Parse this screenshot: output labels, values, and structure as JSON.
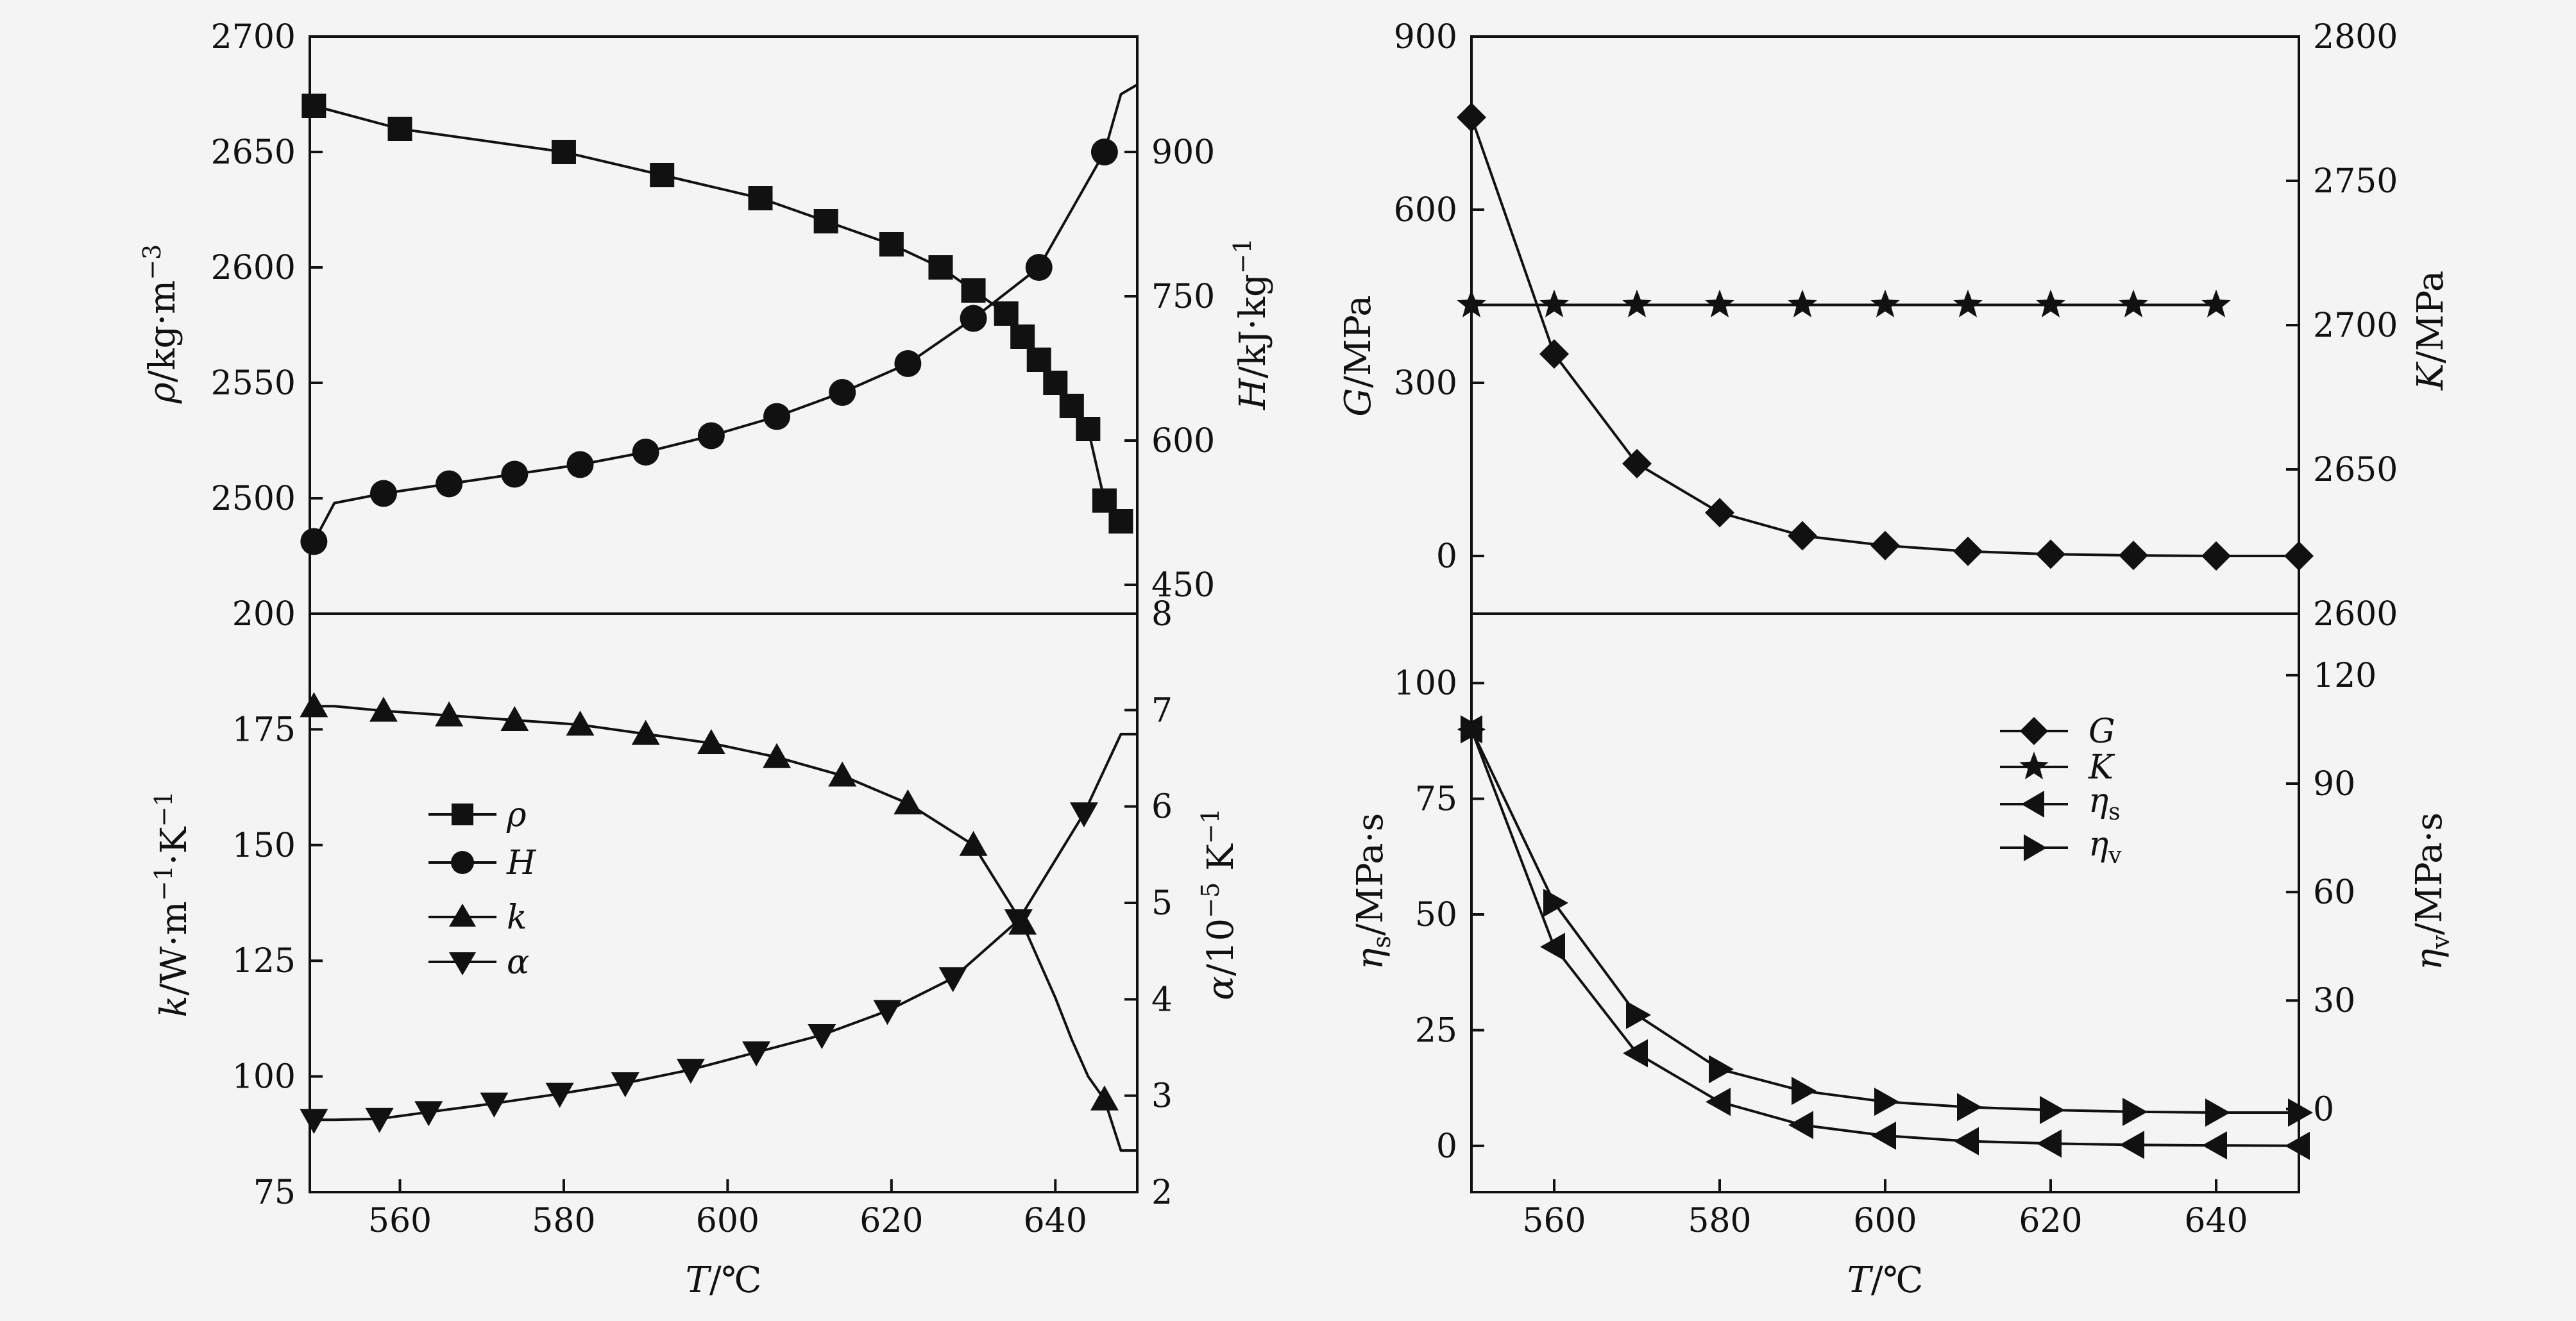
{
  "figure": {
    "background": "#f4f4f4",
    "line_color": "#111111"
  },
  "chart_data": [
    {
      "id": "tl",
      "type": "line",
      "left_axis": {
        "label_html": "ρ/kg·m⁻³",
        "label": "ρ/kg·m⁻³",
        "range": [
          2450,
          2700
        ],
        "ticks": [
          2500,
          2550,
          2600,
          2650,
          2700
        ]
      },
      "right_axis": {
        "label": "H/kJ·kg⁻¹",
        "range": [
          420,
          1020
        ],
        "ticks": [
          450,
          600,
          750,
          900
        ]
      },
      "x_axis": {
        "range": [
          549,
          650
        ],
        "ticks": []
      },
      "series": [
        {
          "name": "ρ",
          "axis": "left",
          "marker": "square",
          "x": [
            549.5,
            560,
            580,
            592,
            604,
            612,
            620,
            626,
            630,
            634,
            636,
            638,
            640,
            642,
            644,
            646,
            648
          ],
          "y": [
            2670,
            2660,
            2650,
            2640,
            2630,
            2620,
            2610,
            2600,
            2590,
            2580,
            2570,
            2560,
            2550,
            2540,
            2530,
            2499,
            2490
          ]
        },
        {
          "name": "H",
          "axis": "left",
          "marker": "circle",
          "x": [
            549.5,
            552,
            558,
            566,
            574,
            582,
            590,
            598,
            606,
            614,
            622,
            630,
            638,
            646,
            648,
            650
          ],
          "y": [
            495,
            535,
            545,
            555,
            565,
            575,
            588,
            605,
            625,
            650,
            680,
            727,
            780,
            900,
            960,
            970
          ],
          "y_axis_for_values": "right",
          "marker_indices": [
            0,
            2,
            3,
            4,
            5,
            6,
            7,
            8,
            9,
            10,
            11,
            12,
            13
          ]
        }
      ]
    },
    {
      "id": "bl",
      "type": "line",
      "left_axis": {
        "label": "k/W·m⁻¹·K⁻¹",
        "range": [
          75,
          200
        ],
        "ticks": [
          75,
          100,
          125,
          150,
          175,
          200
        ]
      },
      "right_axis": {
        "label": "α/10⁻⁵ K⁻¹",
        "range": [
          2,
          8
        ],
        "ticks": [
          2,
          3,
          4,
          5,
          6,
          7,
          8
        ]
      },
      "x_axis": {
        "label": "T/℃",
        "range": [
          549,
          650
        ],
        "ticks": [
          560,
          580,
          600,
          620,
          640
        ]
      },
      "legend": {
        "placement": "middle-left",
        "entries": [
          "ρ",
          "H",
          "k",
          "α"
        ]
      },
      "series": [
        {
          "name": "k",
          "axis": "left",
          "marker": "triangle-up",
          "x": [
            549.5,
            552,
            558,
            566,
            574,
            582,
            590,
            598,
            606,
            614,
            622,
            630,
            636,
            638,
            640,
            642,
            644,
            646,
            648,
            650
          ],
          "y": [
            180,
            180,
            179,
            178,
            177,
            176,
            174,
            172,
            169,
            165,
            159,
            150,
            133,
            125,
            117,
            108,
            100,
            95,
            84,
            84
          ],
          "marker_indices": [
            0,
            2,
            3,
            4,
            5,
            6,
            7,
            8,
            9,
            10,
            11,
            12,
            17
          ]
        },
        {
          "name": "α",
          "axis": "right",
          "marker": "triangle-down",
          "x": [
            549.5,
            552,
            557.5,
            563.5,
            571.5,
            579.5,
            587.5,
            595.5,
            603.5,
            611.5,
            619.5,
            627.5,
            635.5,
            643.5,
            648,
            650
          ],
          "y": [
            2.75,
            2.75,
            2.76,
            2.83,
            2.92,
            3.02,
            3.13,
            3.27,
            3.45,
            3.63,
            3.88,
            4.22,
            4.82,
            5.93,
            6.75,
            6.75
          ],
          "marker_indices": [
            0,
            2,
            3,
            4,
            5,
            6,
            7,
            8,
            9,
            10,
            11,
            12,
            13
          ]
        }
      ]
    },
    {
      "id": "tr",
      "type": "line",
      "left_axis": {
        "label": "G/MPa",
        "range": [
          -100,
          900
        ],
        "ticks": [
          0,
          300,
          600,
          900
        ]
      },
      "right_axis": {
        "label": "K/MPa",
        "range": [
          2600,
          2800
        ],
        "ticks": [
          2600,
          2650,
          2700,
          2750,
          2800
        ]
      },
      "x_axis": {
        "range": [
          550,
          650
        ],
        "ticks": []
      },
      "series": [
        {
          "name": "G",
          "axis": "left",
          "marker": "diamond",
          "x": [
            550,
            560,
            570,
            580,
            590,
            600,
            610,
            620,
            630,
            640,
            650
          ],
          "y": [
            760,
            350,
            160,
            75,
            35,
            18,
            8,
            3,
            1,
            0,
            0
          ]
        },
        {
          "name": "K",
          "axis": "right",
          "marker": "star",
          "x": [
            550,
            560,
            570,
            580,
            590,
            600,
            610,
            620,
            630,
            640
          ],
          "y": [
            2707,
            2707,
            2707,
            2707,
            2707,
            2707,
            2707,
            2707,
            2707,
            2707
          ]
        }
      ]
    },
    {
      "id": "br",
      "type": "line",
      "left_axis": {
        "label": "ηs/MPa·s",
        "range": [
          -10,
          115
        ],
        "ticks": [
          0,
          25,
          50,
          75,
          100
        ]
      },
      "right_axis": {
        "label": "ηv/MPa·s",
        "range": [
          -23,
          137
        ],
        "ticks": [
          0,
          30,
          60,
          90,
          120
        ]
      },
      "x_axis": {
        "label": "T/℃",
        "range": [
          550,
          650
        ],
        "ticks": [
          560,
          580,
          600,
          620,
          640
        ]
      },
      "legend": {
        "placement": "top-right",
        "entries": [
          "G",
          "K",
          "ηs",
          "ηv"
        ]
      },
      "series": [
        {
          "name": "ηs",
          "axis": "left",
          "marker": "triangle-left",
          "x": [
            550,
            560,
            570,
            580,
            590,
            600,
            610,
            620,
            630,
            640,
            650
          ],
          "y": [
            90,
            43,
            20,
            9.5,
            4.5,
            2.2,
            1,
            0.5,
            0.2,
            0.1,
            0
          ]
        },
        {
          "name": "ηv",
          "axis": "right",
          "marker": "triangle-right",
          "x": [
            550,
            560,
            570,
            580,
            590,
            600,
            610,
            620,
            630,
            640,
            650
          ],
          "y": [
            105,
            57,
            26,
            11,
            5,
            2,
            0.5,
            -0.3,
            -0.8,
            -1,
            -1
          ]
        }
      ]
    }
  ],
  "text": {
    "tl_left_label_sym": "ρ",
    "tl_left_label_rest": "/kg·m",
    "tl_left_label_exp": "−3",
    "tl_right_label_sym": "H",
    "tl_right_label_rest": "/kJ·kg",
    "tl_right_label_exp": "−1",
    "bl_left_label_sym": "k",
    "bl_left_label_rest": "/W·m",
    "bl_left_label_exp1": "−1",
    "bl_left_label_mid": "·K",
    "bl_left_label_exp2": "−1",
    "bl_right_label_sym": "α",
    "bl_right_label_rest1": "/10",
    "bl_right_label_exp": "−5",
    "bl_right_label_rest2": " K",
    "bl_right_label_exp2": "−1",
    "tr_left_label_sym": "G",
    "tr_left_label_rest": "/MPa",
    "tr_right_label_sym": "K",
    "tr_right_label_rest": "/MPa",
    "br_left_label_sym": "η",
    "br_left_label_sub": "s",
    "br_left_label_rest": "/MPa·s",
    "br_right_label_sym": "η",
    "br_right_label_sub": "v",
    "br_right_label_rest": "/MPa·s",
    "x_label_sym": "T",
    "x_label_rest": "/℃",
    "legend_left": [
      "ρ",
      "H",
      "k",
      "α"
    ],
    "legend_right_G": "G",
    "legend_right_K": "K",
    "legend_right_eta": "η",
    "legend_right_s": "s",
    "legend_right_v": "v"
  }
}
